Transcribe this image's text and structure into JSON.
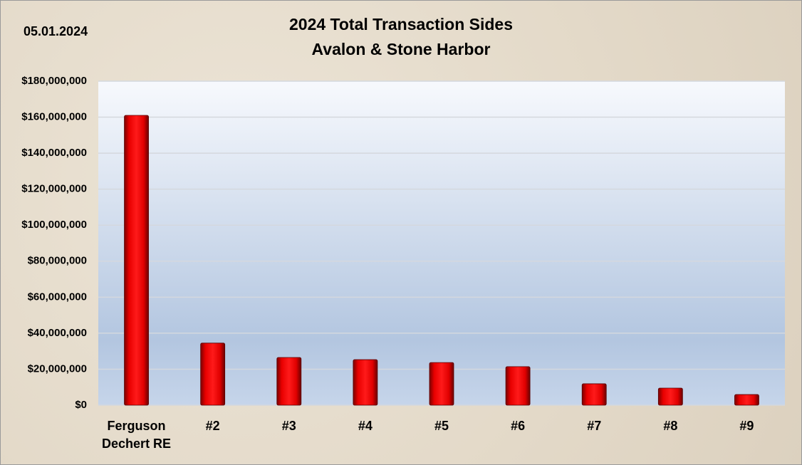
{
  "chart_data": {
    "type": "bar",
    "title": "2024 Total Transaction Sides",
    "subtitle": "Avalon & Stone Harbor",
    "annotation": "05.01.2024",
    "categories": [
      "Ferguson Dechert RE",
      "#2",
      "#3",
      "#4",
      "#5",
      "#6",
      "#7",
      "#8",
      "#9"
    ],
    "values": [
      161000000,
      34500000,
      26500000,
      25300000,
      23700000,
      21400000,
      11900000,
      9500000,
      5900000
    ],
    "color": "#e00000",
    "ylim": [
      0,
      180000000
    ],
    "yticks": [
      {
        "value": 0,
        "label": "$0"
      },
      {
        "value": 20000000,
        "label": "$20,000,000"
      },
      {
        "value": 40000000,
        "label": "$40,000,000"
      },
      {
        "value": 60000000,
        "label": "$60,000,000"
      },
      {
        "value": 80000000,
        "label": "$80,000,000"
      },
      {
        "value": 100000000,
        "label": "$100,000,000"
      },
      {
        "value": 120000000,
        "label": "$120,000,000"
      },
      {
        "value": 140000000,
        "label": "$140,000,000"
      },
      {
        "value": 160000000,
        "label": "$160,000,000"
      },
      {
        "value": 180000000,
        "label": "$180,000,000"
      }
    ],
    "grid": true
  }
}
